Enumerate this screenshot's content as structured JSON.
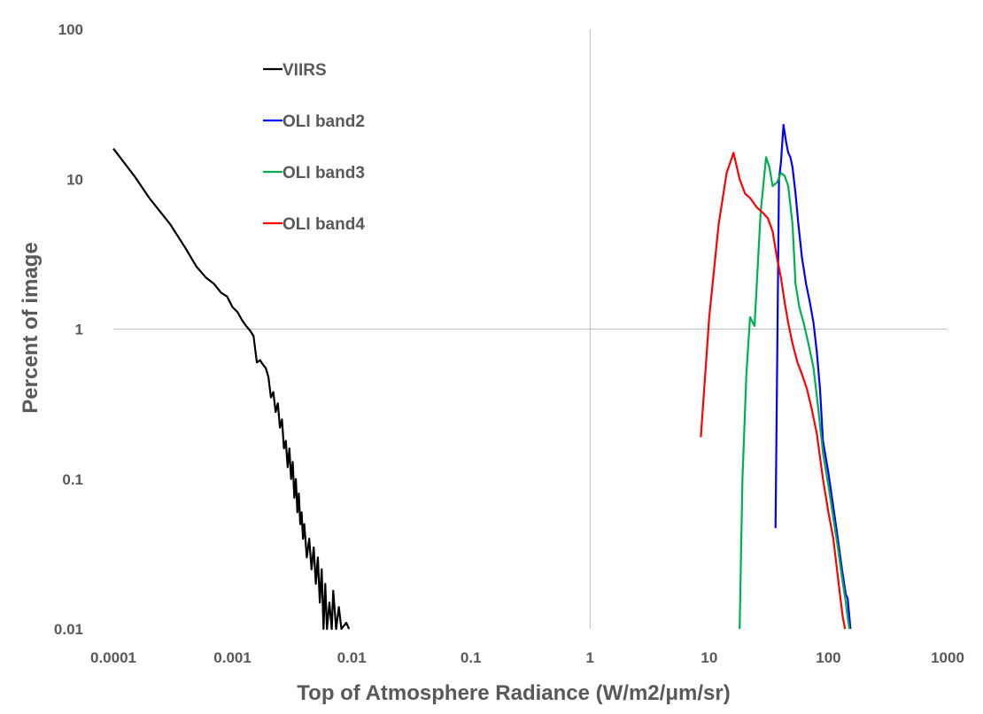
{
  "chart_data": {
    "type": "line",
    "xlabel": "Top of Atmosphere Radiance (W/m2/μm/sr)",
    "ylabel": "Percent of image",
    "x_scale": "log",
    "y_scale": "log",
    "xlim": [
      0.0001,
      1000
    ],
    "ylim": [
      0.01,
      100
    ],
    "x_ticks": [
      0.0001,
      0.001,
      0.01,
      0.1,
      1,
      10,
      100,
      1000
    ],
    "x_tick_labels": [
      "0.0001",
      "0.001",
      "0.01",
      "0.1",
      "1",
      "10",
      "100",
      "1000"
    ],
    "y_ticks": [
      0.01,
      0.1,
      1,
      10,
      100
    ],
    "y_tick_labels": [
      "0.01",
      "0.1",
      "1",
      "10",
      "100"
    ],
    "grid": {
      "major_lines_at": "x=1, y=1"
    },
    "legend_position": "top-left",
    "series": [
      {
        "name": "VIIRS",
        "color": "#000000",
        "points": [
          [
            0.0001,
            16
          ],
          [
            0.00015,
            10.5
          ],
          [
            0.0002,
            7.5
          ],
          [
            0.0003,
            5
          ],
          [
            0.0004,
            3.5
          ],
          [
            0.0005,
            2.6
          ],
          [
            0.0006,
            2.2
          ],
          [
            0.0007,
            2
          ],
          [
            0.0008,
            1.75
          ],
          [
            0.0009,
            1.65
          ],
          [
            0.001,
            1.4
          ],
          [
            0.0011,
            1.3
          ],
          [
            0.0012,
            1.15
          ],
          [
            0.0013,
            1.05
          ],
          [
            0.0014,
            0.98
          ],
          [
            0.0015,
            0.9
          ],
          [
            0.0016,
            0.6
          ],
          [
            0.0017,
            0.62
          ],
          [
            0.0018,
            0.58
          ],
          [
            0.0019,
            0.55
          ],
          [
            0.002,
            0.48
          ],
          [
            0.0021,
            0.35
          ],
          [
            0.0022,
            0.38
          ],
          [
            0.0023,
            0.28
          ],
          [
            0.0024,
            0.32
          ],
          [
            0.0025,
            0.22
          ],
          [
            0.0026,
            0.25
          ],
          [
            0.0027,
            0.16
          ],
          [
            0.0028,
            0.18
          ],
          [
            0.0029,
            0.12
          ],
          [
            0.003,
            0.16
          ],
          [
            0.0031,
            0.1
          ],
          [
            0.0032,
            0.13
          ],
          [
            0.0033,
            0.075
          ],
          [
            0.0034,
            0.1
          ],
          [
            0.0035,
            0.06
          ],
          [
            0.0036,
            0.08
          ],
          [
            0.0037,
            0.05
          ],
          [
            0.0038,
            0.06
          ],
          [
            0.0039,
            0.04
          ],
          [
            0.004,
            0.05
          ],
          [
            0.0042,
            0.03
          ],
          [
            0.0044,
            0.04
          ],
          [
            0.0046,
            0.025
          ],
          [
            0.0048,
            0.035
          ],
          [
            0.005,
            0.02
          ],
          [
            0.0052,
            0.03
          ],
          [
            0.0054,
            0.015
          ],
          [
            0.0056,
            0.025
          ],
          [
            0.0058,
            0.01
          ],
          [
            0.006,
            0.02
          ],
          [
            0.0062,
            0.01
          ],
          [
            0.0065,
            0.015
          ],
          [
            0.0068,
            0.01
          ],
          [
            0.007,
            0.018
          ],
          [
            0.0074,
            0.01
          ],
          [
            0.0078,
            0.014
          ],
          [
            0.0082,
            0.01
          ],
          [
            0.009,
            0.011
          ],
          [
            0.0095,
            0.01
          ]
        ]
      },
      {
        "name": "OLI band2",
        "color": "#0000ff",
        "points": [
          [
            36,
            0.047
          ],
          [
            38.5,
            10
          ],
          [
            40,
            13
          ],
          [
            42,
            23
          ],
          [
            44,
            18
          ],
          [
            46,
            15
          ],
          [
            48,
            14
          ],
          [
            50,
            12
          ],
          [
            53,
            8
          ],
          [
            56,
            5
          ],
          [
            60,
            3
          ],
          [
            65,
            2
          ],
          [
            70,
            1.5
          ],
          [
            75,
            1.1
          ],
          [
            80,
            0.7
          ],
          [
            85,
            0.4
          ],
          [
            90,
            0.18
          ],
          [
            100,
            0.11
          ],
          [
            110,
            0.065
          ],
          [
            120,
            0.04
          ],
          [
            130,
            0.025
          ],
          [
            140,
            0.017
          ],
          [
            145,
            0.016
          ],
          [
            150,
            0.012
          ],
          [
            153,
            0.01
          ]
        ]
      },
      {
        "name": "OLI band3",
        "color": "#00b050",
        "points": [
          [
            18,
            0.01
          ],
          [
            19,
            0.1
          ],
          [
            20.5,
            0.5
          ],
          [
            22,
            1.2
          ],
          [
            24,
            1.05
          ],
          [
            27,
            6
          ],
          [
            30,
            14
          ],
          [
            32,
            12
          ],
          [
            34,
            9
          ],
          [
            37,
            9.5
          ],
          [
            40,
            11
          ],
          [
            43,
            10.5
          ],
          [
            46,
            9
          ],
          [
            50,
            5
          ],
          [
            53,
            2
          ],
          [
            57,
            1.4
          ],
          [
            62,
            1.1
          ],
          [
            68,
            0.8
          ],
          [
            75,
            0.55
          ],
          [
            82,
            0.3
          ],
          [
            90,
            0.15
          ],
          [
            100,
            0.09
          ],
          [
            110,
            0.055
          ],
          [
            120,
            0.035
          ],
          [
            130,
            0.022
          ],
          [
            140,
            0.015
          ],
          [
            145,
            0.012
          ],
          [
            150,
            0.01
          ]
        ]
      },
      {
        "name": "OLI band4",
        "color": "#ff0000",
        "points": [
          [
            8.5,
            0.19
          ],
          [
            10,
            1.2
          ],
          [
            12,
            5
          ],
          [
            14,
            11
          ],
          [
            16,
            15
          ],
          [
            18,
            10
          ],
          [
            20,
            8
          ],
          [
            22,
            7.5
          ],
          [
            25,
            6.5
          ],
          [
            28,
            6
          ],
          [
            31,
            5.5
          ],
          [
            34,
            4.5
          ],
          [
            37,
            3
          ],
          [
            40,
            2.2
          ],
          [
            43,
            1.5
          ],
          [
            46,
            1.1
          ],
          [
            50,
            0.8
          ],
          [
            55,
            0.6
          ],
          [
            60,
            0.5
          ],
          [
            66,
            0.4
          ],
          [
            72,
            0.3
          ],
          [
            80,
            0.2
          ],
          [
            90,
            0.1
          ],
          [
            100,
            0.06
          ],
          [
            110,
            0.04
          ],
          [
            118,
            0.025
          ],
          [
            125,
            0.017
          ],
          [
            132,
            0.012
          ],
          [
            138,
            0.01
          ]
        ]
      }
    ]
  }
}
